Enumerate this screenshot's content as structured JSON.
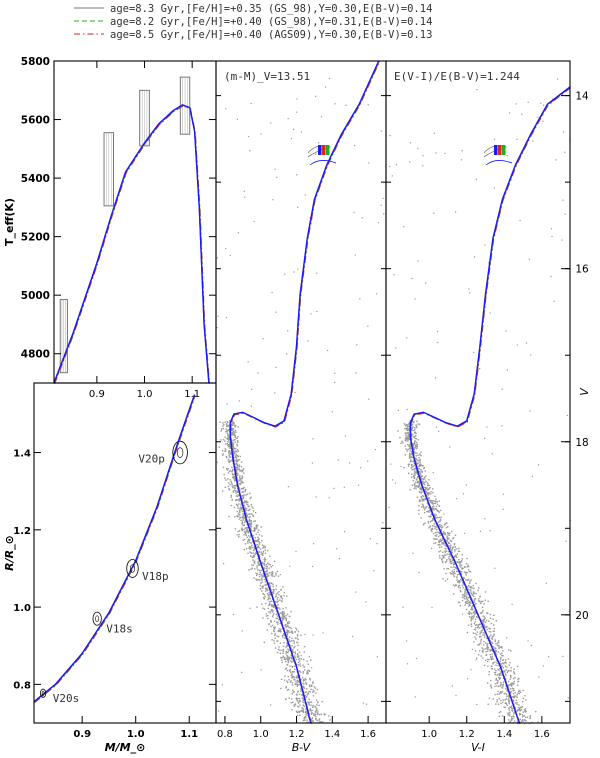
{
  "chart_data": {
    "type": "multi-panel",
    "legend": {
      "placement": "top",
      "entries": [
        {
          "label": "age=8.3 Gyr,[Fe/H]=+0.35 (GS_98),Y=0.30,E(B-V)=0.14",
          "color": "#777777",
          "style": "solid"
        },
        {
          "label": "age=8.2 Gyr,[Fe/H]=+0.40 (GS_98),Y=0.31,E(B-V)=0.14",
          "color": "#22aa22",
          "style": "dashed"
        },
        {
          "label": "age=8.5 Gyr,[Fe/H]=+0.40 (AGS09),Y=0.30,E(B-V)=0.13",
          "color": "#dd2222",
          "style": "dashdot"
        }
      ]
    },
    "model_colors": {
      "blue": "#1a1aff",
      "green": "#22aa22",
      "red": "#dd2222",
      "gray": "#777777"
    },
    "panels": [
      {
        "id": "teff-mass",
        "ylabel": "T_eff(K)",
        "xlim": [
          0.81,
          1.15
        ],
        "ylim": [
          4700,
          5800
        ],
        "xticks": [
          0.9,
          1.0,
          1.1
        ],
        "xtick_labels": [
          "0.9",
          "1.0",
          "1.1"
        ],
        "yticks": [
          4800,
          5000,
          5200,
          5400,
          5600,
          5800
        ],
        "ytick_labels": [
          "4800",
          "5000",
          "5200",
          "5400",
          "5600",
          "5800"
        ],
        "obs_boxes": [
          {
            "mass": [
              0.823,
              0.838
            ],
            "teff": [
              4735,
              4985
            ]
          },
          {
            "mass": [
              0.915,
              0.935
            ],
            "teff": [
              5305,
              5555
            ]
          },
          {
            "mass": [
              0.99,
              1.01
            ],
            "teff": [
              5510,
              5700
            ]
          },
          {
            "mass": [
              1.075,
              1.095
            ],
            "teff": [
              5550,
              5745
            ]
          }
        ],
        "isochrone": {
          "mass": [
            0.81,
            0.85,
            0.9,
            0.93,
            0.96,
            1.0,
            1.03,
            1.06,
            1.08,
            1.095,
            1.105,
            1.115,
            1.125,
            1.135
          ],
          "teff": [
            4700,
            4870,
            5110,
            5270,
            5420,
            5520,
            5585,
            5630,
            5650,
            5640,
            5560,
            5300,
            4900,
            4700
          ]
        }
      },
      {
        "id": "radius-mass",
        "xlabel": "M/M_⊙",
        "ylabel": "R/R_⊙",
        "xlim": [
          0.81,
          1.15
        ],
        "ylim": [
          0.7,
          1.58
        ],
        "xticks": [
          0.9,
          1.0,
          1.1
        ],
        "xtick_labels": [
          "0.9",
          "1.0",
          "1.1"
        ],
        "yticks": [
          0.8,
          1.0,
          1.2,
          1.4
        ],
        "ytick_labels": [
          "0.8",
          "1.0",
          "1.2",
          "1.4"
        ],
        "stars": [
          {
            "label": "V20s",
            "mass": 0.827,
            "radius": 0.777,
            "label_mass": 0.845,
            "label_radius": 0.765
          },
          {
            "label": "V18s",
            "mass": 0.928,
            "radius": 0.97,
            "label_mass": 0.945,
            "label_radius": 0.945
          },
          {
            "label": "V18p",
            "mass": 0.994,
            "radius": 1.1,
            "label_mass": 1.012,
            "label_radius": 1.08
          },
          {
            "label": "V20p",
            "mass": 1.083,
            "radius": 1.4,
            "label_mass": 1.005,
            "label_radius": 1.385
          }
        ],
        "isochrone": {
          "mass": [
            0.81,
            0.85,
            0.9,
            0.95,
            1.0,
            1.04,
            1.08,
            1.11
          ],
          "radius": [
            0.755,
            0.8,
            0.88,
            0.985,
            1.12,
            1.26,
            1.43,
            1.55
          ]
        }
      },
      {
        "id": "cmd-bv",
        "xlabel": "B-V",
        "annotation": "(m-M)_V=13.51",
        "xlim": [
          0.75,
          1.7
        ],
        "ylim": [
          21.25,
          13.6
        ],
        "xticks": [
          0.8,
          1.0,
          1.2,
          1.4,
          1.6
        ],
        "xtick_labels": [
          "0.8",
          "1.0",
          "1.2",
          "1.4",
          "1.6"
        ],
        "isochrone": {
          "color": [
            1.28,
            1.2,
            1.1,
            1.0,
            0.92,
            0.87,
            0.845,
            0.83,
            0.83,
            0.85,
            0.9,
            0.96,
            1.02,
            1.08,
            1.13,
            1.17,
            1.2,
            1.22,
            1.26,
            1.3,
            1.37,
            1.45,
            1.55,
            1.66
          ],
          "mag": [
            21.25,
            20.6,
            20.0,
            19.4,
            18.9,
            18.5,
            18.2,
            17.95,
            17.78,
            17.68,
            17.66,
            17.72,
            17.78,
            17.82,
            17.76,
            17.45,
            16.9,
            16.3,
            15.65,
            15.2,
            14.8,
            14.45,
            14.1,
            13.6
          ]
        }
      },
      {
        "id": "cmd-vi",
        "xlabel": "V-I",
        "ylabel": "V",
        "annotation": "E(V-I)/E(B-V)=1.244",
        "xlim": [
          0.77,
          1.75
        ],
        "ylim": [
          21.25,
          13.6
        ],
        "xticks": [
          1.0,
          1.2,
          1.4,
          1.6
        ],
        "xtick_labels": [
          "1.0",
          "1.2",
          "1.4",
          "1.6"
        ],
        "yticks": [
          14,
          16,
          18,
          20
        ],
        "ytick_labels": [
          "14",
          "16",
          "18",
          "20"
        ],
        "isochrone": {
          "color": [
            1.48,
            1.38,
            1.26,
            1.14,
            1.03,
            0.96,
            0.92,
            0.9,
            0.9,
            0.92,
            0.97,
            1.03,
            1.09,
            1.15,
            1.2,
            1.24,
            1.27,
            1.3,
            1.34,
            1.39,
            1.46,
            1.54,
            1.63,
            1.75
          ],
          "mag": [
            21.25,
            20.6,
            20.0,
            19.4,
            18.9,
            18.5,
            18.2,
            17.95,
            17.78,
            17.68,
            17.66,
            17.72,
            17.78,
            17.82,
            17.76,
            17.45,
            16.9,
            16.3,
            15.65,
            15.2,
            14.8,
            14.45,
            14.1,
            13.9
          ]
        }
      }
    ]
  }
}
